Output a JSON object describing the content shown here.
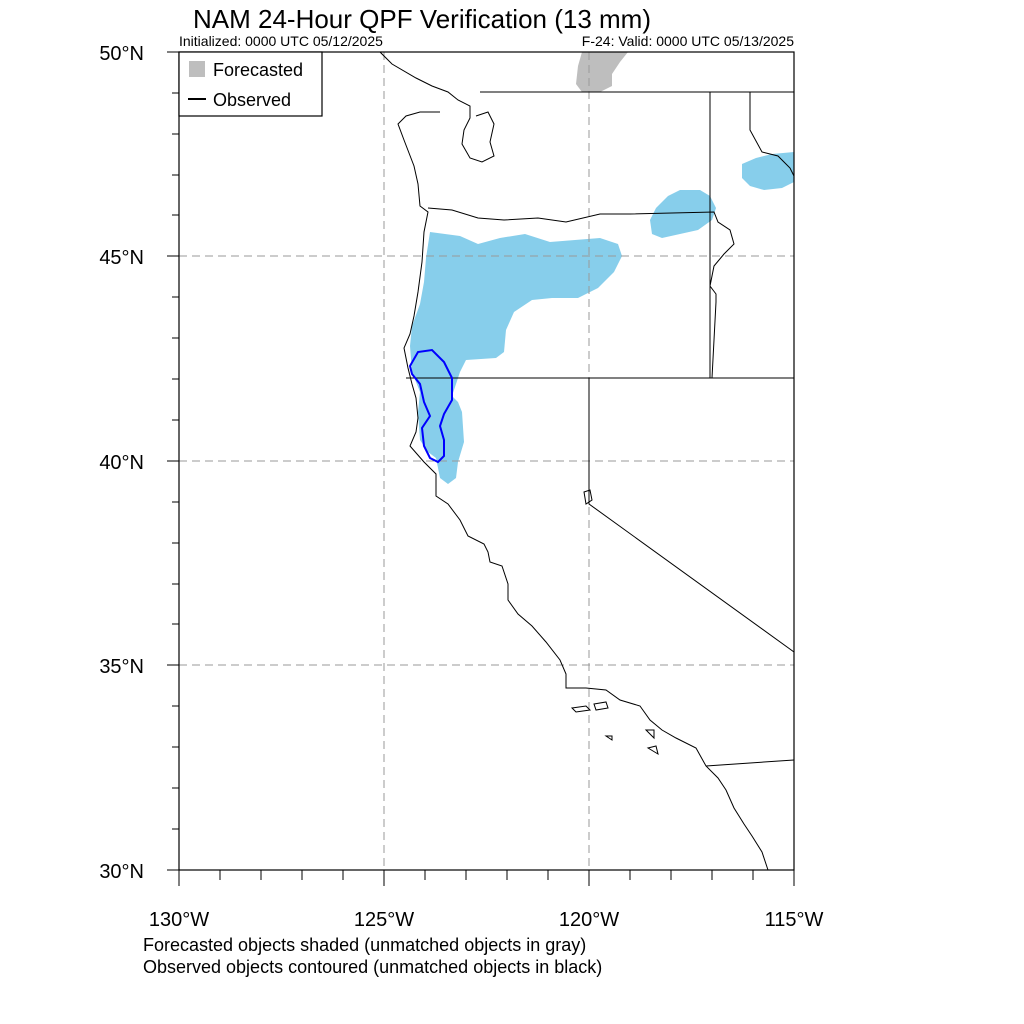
{
  "title": "NAM 24-Hour QPF Verification (13 mm)",
  "init_text": "Initialized: 0000 UTC 05/12/2025",
  "valid_text": "F-24: Valid: 0000 UTC 05/13/2025",
  "legend": {
    "forecasted": "Forecasted",
    "observed": "Observed"
  },
  "lat_labels": [
    "50°N",
    "45°N",
    "40°N",
    "35°N",
    "30°N"
  ],
  "lon_labels": [
    "130°W",
    "125°W",
    "120°W",
    "115°W"
  ],
  "footer": {
    "line1": "Forecasted objects shaded (unmatched objects in gray)",
    "line2": "Observed objects contoured (unmatched objects in black)"
  },
  "colors": {
    "matched_forecast": "#87ceeb",
    "unmatched_forecast": "#bebebe",
    "observed_contour": "#0000ff",
    "grid": "#999999"
  },
  "map_extent": {
    "lon": [
      -130,
      -115
    ],
    "lat": [
      30,
      50
    ]
  }
}
